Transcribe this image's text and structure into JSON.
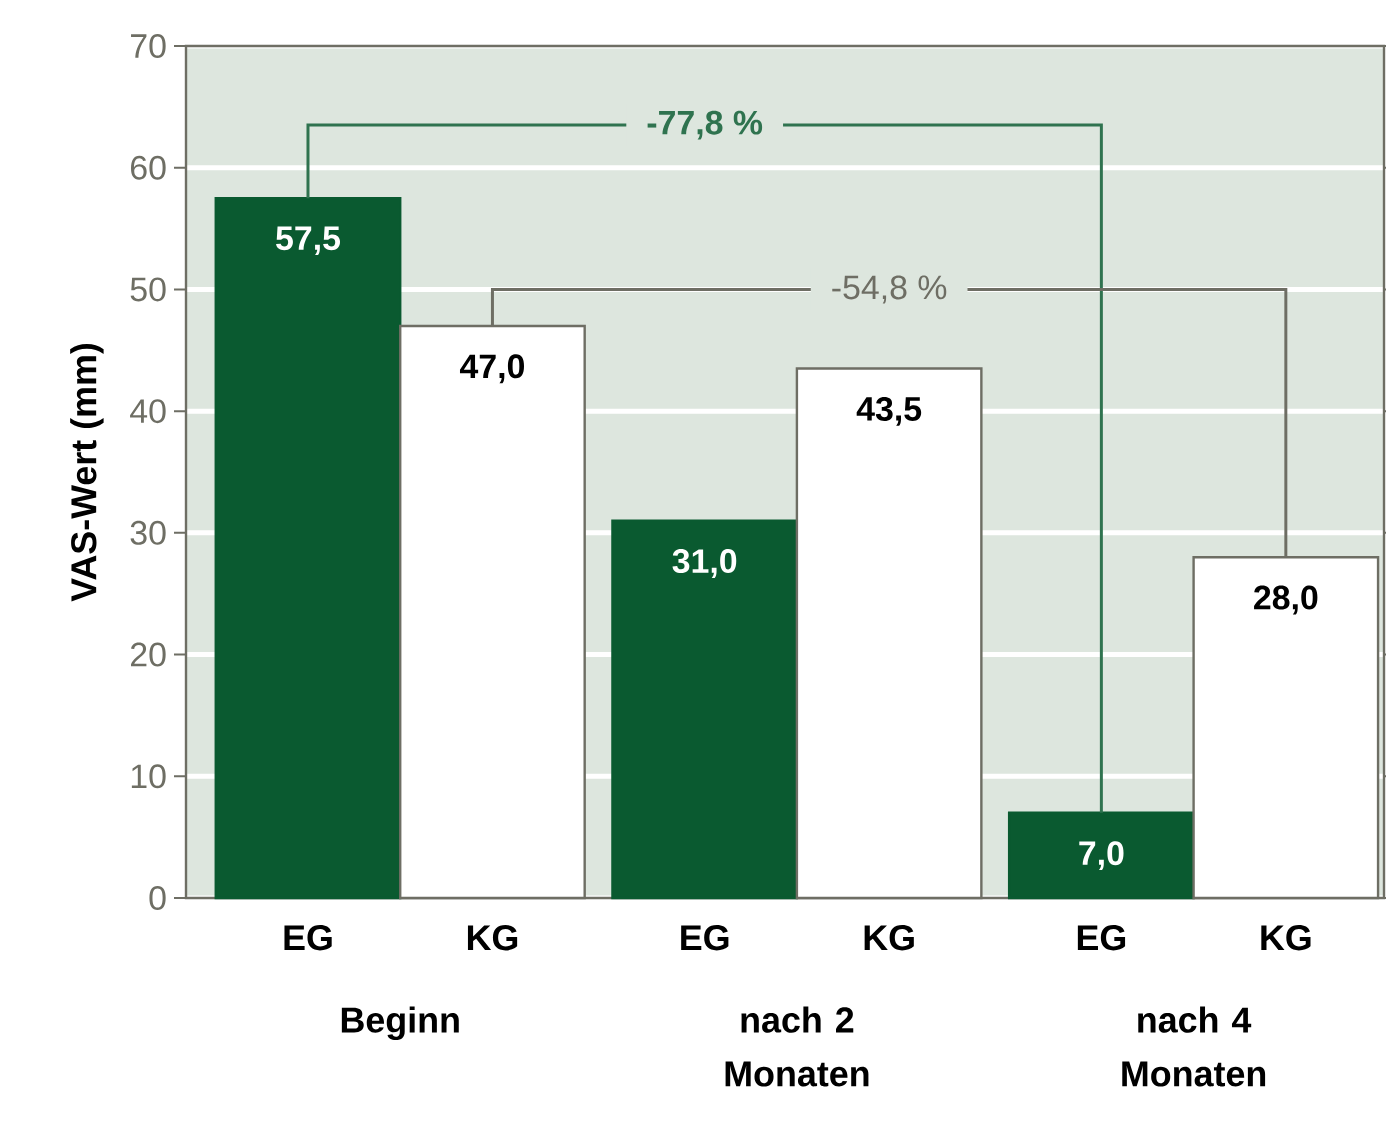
{
  "chart_data": {
    "type": "bar",
    "ylabel": "VAS-Wert (mm)",
    "categories": [
      "Beginn",
      "nach 2 Monaten",
      "nach 4 Monaten"
    ],
    "series": [
      {
        "name": "EG",
        "color": "#0a5a30",
        "values": [
          57.5,
          31.0,
          7.0
        ],
        "value_labels": [
          "57,5",
          "31,0",
          "7,0"
        ]
      },
      {
        "name": "KG",
        "color": "#ffffff",
        "values": [
          47.0,
          43.5,
          28.0
        ],
        "value_labels": [
          "47,0",
          "43,5",
          "28,0"
        ]
      }
    ],
    "annotations": [
      "-77,8 %",
      "-54,8 %"
    ],
    "ylim": [
      0,
      70
    ],
    "yticks": [
      0,
      10,
      20,
      30,
      40,
      50,
      60,
      70
    ],
    "grid": "y"
  }
}
